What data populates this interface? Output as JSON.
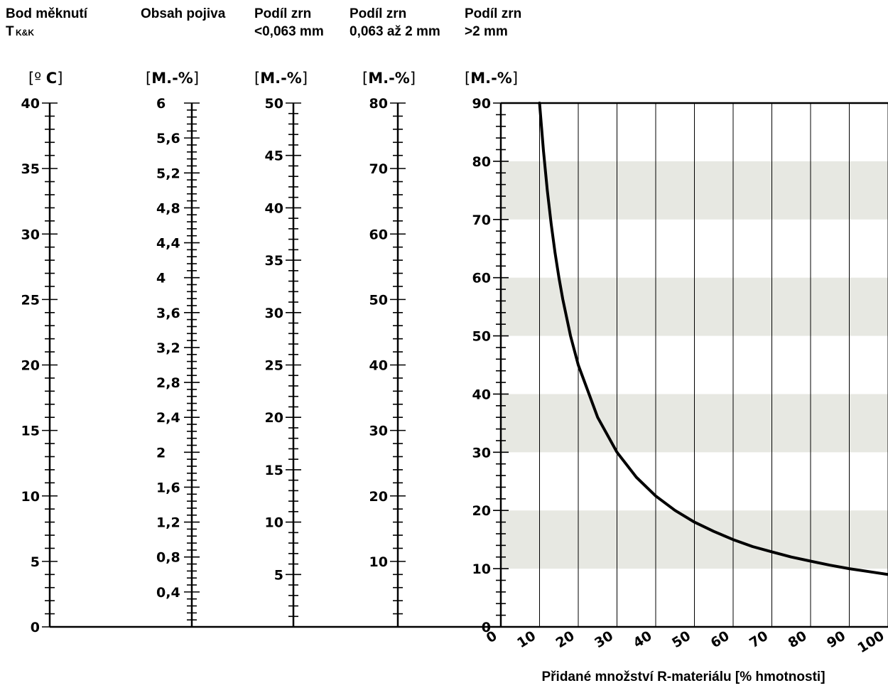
{
  "chart_data": {
    "type": "line",
    "nomogram_scales": [
      {
        "name": "Bod měknutí",
        "title_lines": [
          "Bod měknutí",
          "T"
        ],
        "subscript": "K&K",
        "unit_open": "[",
        "unit_main": "º ",
        "unit_bold": "C",
        "unit_close": "]",
        "min": 0,
        "max": 40,
        "tick_labels": [
          "0",
          "5",
          "10",
          "15",
          "20",
          "25",
          "30",
          "35",
          "40"
        ],
        "tick_values": [
          0,
          5,
          10,
          15,
          20,
          25,
          30,
          35,
          40
        ]
      },
      {
        "name": "Obsah pojiva",
        "title_lines": [
          "Obsah pojiva"
        ],
        "unit_open": "[",
        "unit_bold": "M.-%",
        "unit_close": "]",
        "min": 0,
        "max": 6,
        "tick_labels": [
          "0,4",
          "0,8",
          "1,2",
          "1,6",
          "2",
          "2,4",
          "2,8",
          "3,2",
          "3,6",
          "4",
          "4,4",
          "4,8",
          "5,2",
          "5,6",
          "6"
        ],
        "tick_values": [
          0.4,
          0.8,
          1.2,
          1.6,
          2,
          2.4,
          2.8,
          3.2,
          3.6,
          4,
          4.4,
          4.8,
          5.2,
          5.6,
          6
        ]
      },
      {
        "name": "Podíl zrn <0,063 mm",
        "title_lines": [
          "Podíl zrn",
          "<0,063 mm"
        ],
        "unit_open": "[",
        "unit_bold": "M.-%",
        "unit_close": "]",
        "min": 0,
        "max": 50,
        "tick_labels": [
          "5",
          "10",
          "15",
          "20",
          "25",
          "30",
          "35",
          "40",
          "45",
          "50"
        ],
        "tick_values": [
          5,
          10,
          15,
          20,
          25,
          30,
          35,
          40,
          45,
          50
        ]
      },
      {
        "name": "Podíl zrn 0,063 až 2 mm",
        "title_lines": [
          "Podíl zrn",
          "0,063 až 2 mm"
        ],
        "unit_open": "[",
        "unit_bold": "M.-%",
        "unit_close": "]",
        "min": 0,
        "max": 80,
        "tick_labels": [
          "10",
          "20",
          "30",
          "40",
          "50",
          "60",
          "70",
          "80"
        ],
        "tick_values": [
          10,
          20,
          30,
          40,
          50,
          60,
          70,
          80
        ]
      },
      {
        "name": "Podíl zrn >2 mm",
        "title_lines": [
          "Podíl zrn",
          " >2 mm"
        ],
        "unit_open": "[",
        "unit_bold": "M.-%",
        "unit_close": "]",
        "min": 0,
        "max": 90,
        "tick_labels": [
          "0",
          "10",
          "20",
          "30",
          "40",
          "50",
          "60",
          "70",
          "80",
          "90"
        ],
        "tick_values": [
          0,
          10,
          20,
          30,
          40,
          50,
          60,
          70,
          80,
          90
        ]
      }
    ],
    "x_axis": {
      "label": "Přidané množství R-materiálu [% hmotnosti]",
      "tick_labels": [
        "0",
        "10",
        "20",
        "30",
        "40",
        "50",
        "60",
        "70",
        "80",
        "90",
        "100"
      ],
      "tick_values": [
        0,
        10,
        20,
        30,
        40,
        50,
        60,
        70,
        80,
        90,
        100
      ],
      "range": [
        0,
        100
      ]
    },
    "y_range": [
      0,
      90
    ],
    "shaded_bands": [
      [
        10,
        20
      ],
      [
        30,
        40
      ],
      [
        50,
        60
      ],
      [
        70,
        80
      ]
    ],
    "series": [
      {
        "x": [
          10,
          11,
          12,
          13,
          14,
          15,
          16,
          18,
          20,
          25,
          30,
          35,
          40,
          45,
          50,
          55,
          60,
          65,
          70,
          75,
          80,
          85,
          90,
          95,
          100
        ],
        "y": [
          90,
          81.8,
          75,
          69.2,
          64.3,
          60,
          56.3,
          50,
          45,
          36,
          30,
          25.7,
          22.5,
          20,
          18,
          16.4,
          15,
          13.8,
          12.9,
          12,
          11.3,
          10.6,
          10,
          9.5,
          9
        ]
      }
    ],
    "colors": {
      "band": "#e7e8e2",
      "line": "#000000",
      "grid": "#000000"
    }
  }
}
